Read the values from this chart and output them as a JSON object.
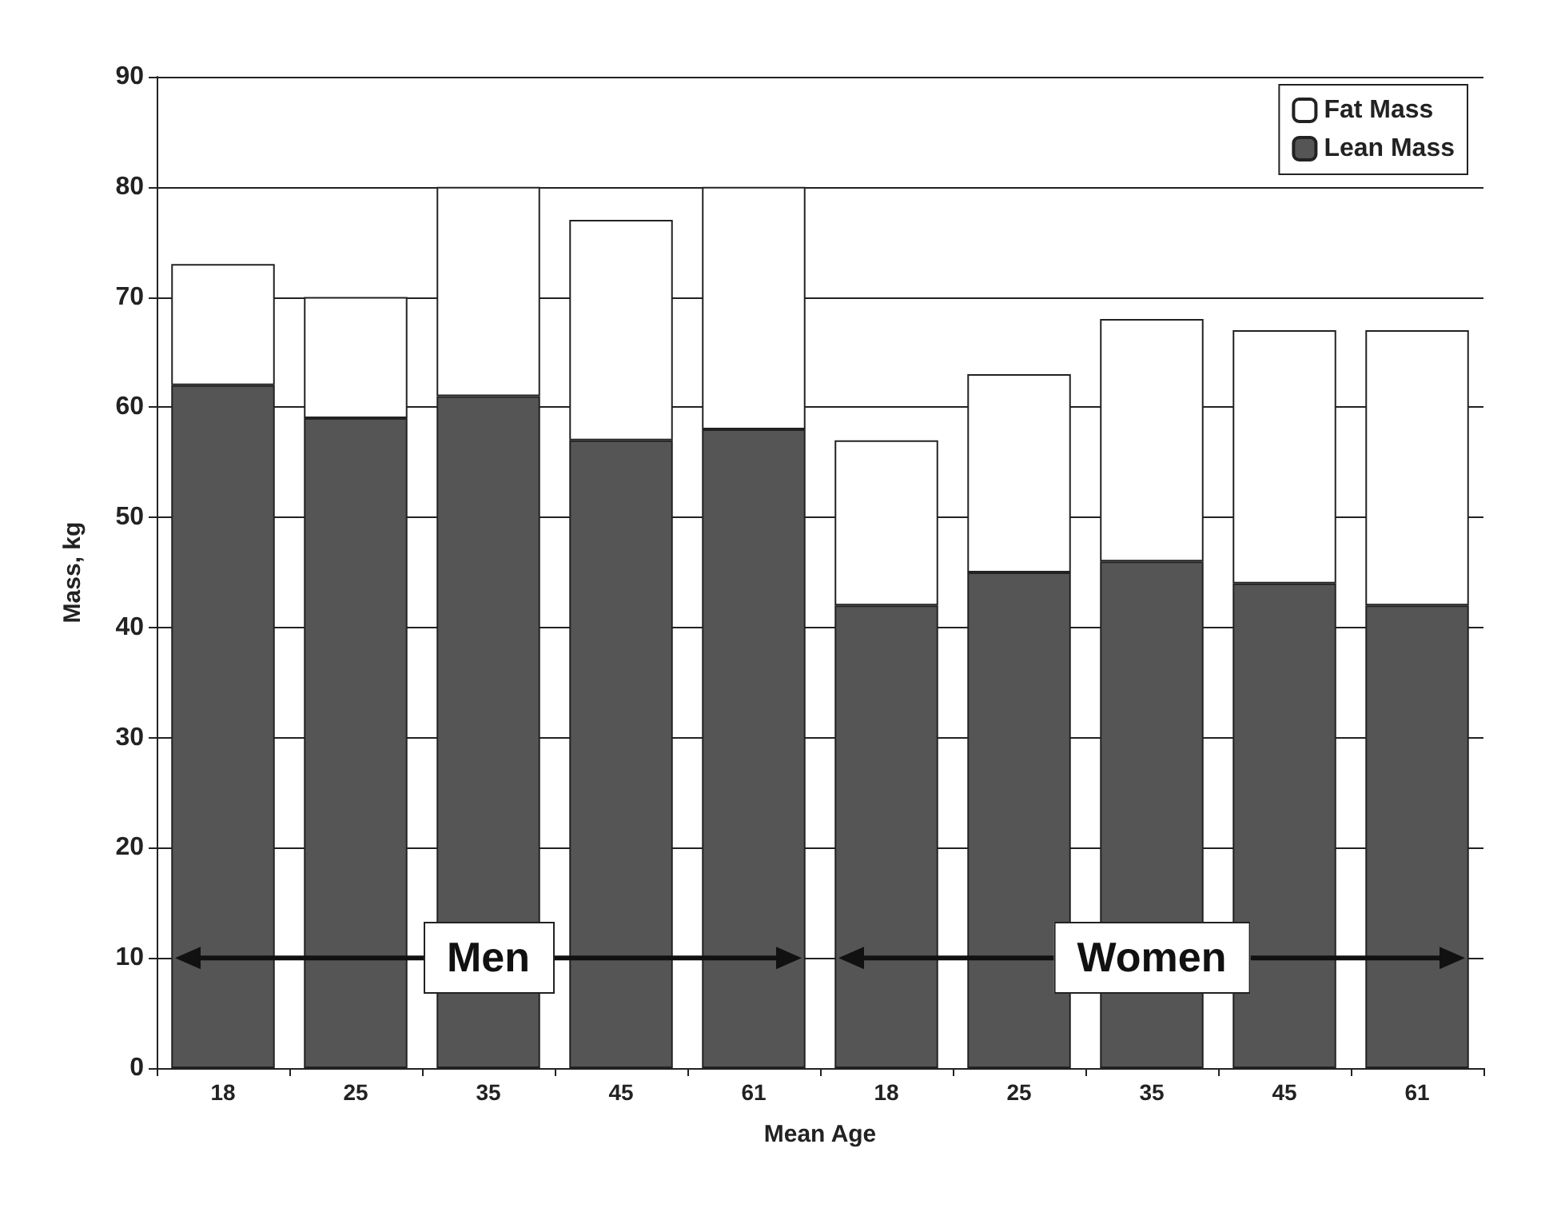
{
  "chart_data": {
    "type": "bar",
    "stacked": true,
    "xlabel": "Mean Age",
    "ylabel": "Mass, kg",
    "categories": [
      "18",
      "25",
      "35",
      "45",
      "61",
      "18",
      "25",
      "35",
      "45",
      "61"
    ],
    "series": [
      {
        "name": "Lean Mass",
        "color": "#555555",
        "values": [
          62,
          59,
          61,
          57,
          58,
          42,
          45,
          46,
          44,
          42
        ]
      },
      {
        "name": "Fat Mass",
        "color": "#ffffff",
        "values": [
          11,
          11,
          19,
          20,
          22,
          15,
          18,
          22,
          23,
          25
        ]
      }
    ],
    "ylim": [
      0,
      90
    ],
    "yticks": [
      0,
      10,
      20,
      30,
      40,
      50,
      60,
      70,
      80,
      90
    ],
    "grid": "y",
    "legend": "top right",
    "annotations": [
      "Men",
      "Women"
    ]
  }
}
